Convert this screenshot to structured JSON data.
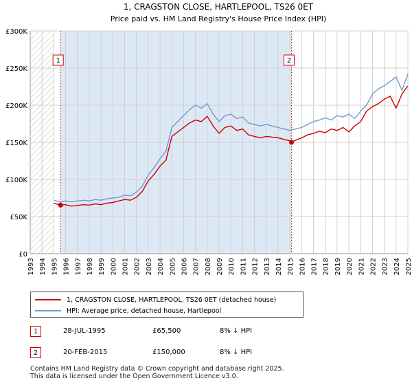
{
  "chart_data": {
    "type": "line",
    "title": "1, CRAGSTON CLOSE, HARTLEPOOL, TS26 0ET",
    "subtitle": "Price paid vs. HM Land Registry's House Price Index (HPI)",
    "xlim": [
      1993,
      2025
    ],
    "ylim": [
      0,
      300000
    ],
    "y_ticks": [
      0,
      50000,
      100000,
      150000,
      200000,
      250000,
      300000
    ],
    "y_tick_labels": [
      "£0",
      "£50K",
      "£100K",
      "£150K",
      "£200K",
      "£250K",
      "£300K"
    ],
    "x_ticks": [
      1993,
      1994,
      1995,
      1996,
      1997,
      1998,
      1999,
      2000,
      2001,
      2002,
      2003,
      2004,
      2005,
      2006,
      2007,
      2008,
      2009,
      2010,
      2011,
      2012,
      2013,
      2014,
      2015,
      2016,
      2017,
      2018,
      2019,
      2020,
      2021,
      2022,
      2023,
      2024,
      2025
    ],
    "hatch_until": 1995.0,
    "grid": true,
    "colors": {
      "property": "#cc0000",
      "hpi": "#6d9bd1",
      "shade": "#dde8f5",
      "grid": "#d0d0d0",
      "marker_border": "#cc0000"
    },
    "series": [
      {
        "name": "1, CRAGSTON CLOSE, HARTLEPOOL, TS26 0ET (detached house)",
        "x": [
          1995.0,
          1995.57,
          1996.0,
          1996.5,
          1997.0,
          1997.5,
          1998.0,
          1998.5,
          1999.0,
          1999.5,
          2000.0,
          2000.5,
          2001.0,
          2001.5,
          2002.0,
          2002.5,
          2003.0,
          2003.5,
          2004.0,
          2004.5,
          2005.0,
          2005.5,
          2006.0,
          2006.5,
          2007.0,
          2007.5,
          2008.0,
          2008.5,
          2009.0,
          2009.5,
          2010.0,
          2010.5,
          2011.0,
          2011.5,
          2012.0,
          2012.5,
          2013.0,
          2013.5,
          2014.0,
          2014.5,
          2015.0,
          2015.14,
          2015.5,
          2016.0,
          2016.5,
          2017.0,
          2017.5,
          2018.0,
          2018.5,
          2019.0,
          2019.5,
          2020.0,
          2020.5,
          2021.0,
          2021.5,
          2022.0,
          2022.5,
          2023.0,
          2023.5,
          2024.0,
          2024.5,
          2025.0
        ],
        "y": [
          68000,
          65500,
          66000,
          64000,
          65000,
          66000,
          65500,
          67000,
          66000,
          68000,
          69000,
          71000,
          73000,
          72000,
          76000,
          84000,
          98000,
          107000,
          118000,
          126000,
          158000,
          164000,
          170000,
          176000,
          180000,
          178000,
          185000,
          172000,
          162000,
          170000,
          172000,
          166000,
          168000,
          160000,
          158000,
          156000,
          158000,
          157000,
          156000,
          154000,
          152000,
          150000,
          153000,
          156000,
          160000,
          162000,
          165000,
          163000,
          168000,
          166000,
          170000,
          164000,
          172000,
          178000,
          192000,
          198000,
          202000,
          208000,
          212000,
          196000,
          215000,
          226000
        ]
      },
      {
        "name": "HPI: Average price, detached house, Hartlepool",
        "x": [
          1995.0,
          1995.5,
          1996.0,
          1996.5,
          1997.0,
          1997.5,
          1998.0,
          1998.5,
          1999.0,
          1999.5,
          2000.0,
          2000.5,
          2001.0,
          2001.5,
          2002.0,
          2002.5,
          2003.0,
          2003.5,
          2004.0,
          2004.5,
          2005.0,
          2005.5,
          2006.0,
          2006.5,
          2007.0,
          2007.5,
          2008.0,
          2008.5,
          2009.0,
          2009.5,
          2010.0,
          2010.5,
          2011.0,
          2011.5,
          2012.0,
          2012.5,
          2013.0,
          2013.5,
          2014.0,
          2014.5,
          2015.0,
          2015.5,
          2016.0,
          2016.5,
          2017.0,
          2017.5,
          2018.0,
          2018.5,
          2019.0,
          2019.5,
          2020.0,
          2020.5,
          2021.0,
          2021.5,
          2022.0,
          2022.5,
          2023.0,
          2023.5,
          2024.0,
          2024.5,
          2025.0
        ],
        "y": [
          72000,
          70000,
          71000,
          70000,
          71000,
          72000,
          71000,
          73000,
          72000,
          74000,
          75000,
          76000,
          79000,
          78000,
          83000,
          91000,
          106000,
          116000,
          128000,
          138000,
          170000,
          178000,
          186000,
          194000,
          200000,
          196000,
          202000,
          188000,
          178000,
          186000,
          188000,
          182000,
          184000,
          176000,
          174000,
          172000,
          174000,
          172000,
          170000,
          168000,
          166000,
          168000,
          170000,
          174000,
          178000,
          180000,
          183000,
          180000,
          186000,
          184000,
          188000,
          182000,
          192000,
          200000,
          215000,
          222000,
          226000,
          232000,
          238000,
          220000,
          242000
        ]
      }
    ],
    "sales": [
      {
        "label": "1",
        "x": 1995.57,
        "y": 65500
      },
      {
        "label": "2",
        "x": 2015.14,
        "y": 150000
      }
    ]
  },
  "legend": {
    "property_label": "1, CRAGSTON CLOSE, HARTLEPOOL, TS26 0ET (detached house)",
    "hpi_label": "HPI: Average price, detached house, Hartlepool"
  },
  "transactions": [
    {
      "num": "1",
      "date": "28-JUL-1995",
      "price": "£65,500",
      "hpi": "8% ↓ HPI"
    },
    {
      "num": "2",
      "date": "20-FEB-2015",
      "price": "£150,000",
      "hpi": "8% ↓ HPI"
    }
  ],
  "footer": {
    "line1": "Contains HM Land Registry data © Crown copyright and database right 2025.",
    "line2": "This data is licensed under the Open Government Licence v3.0."
  }
}
